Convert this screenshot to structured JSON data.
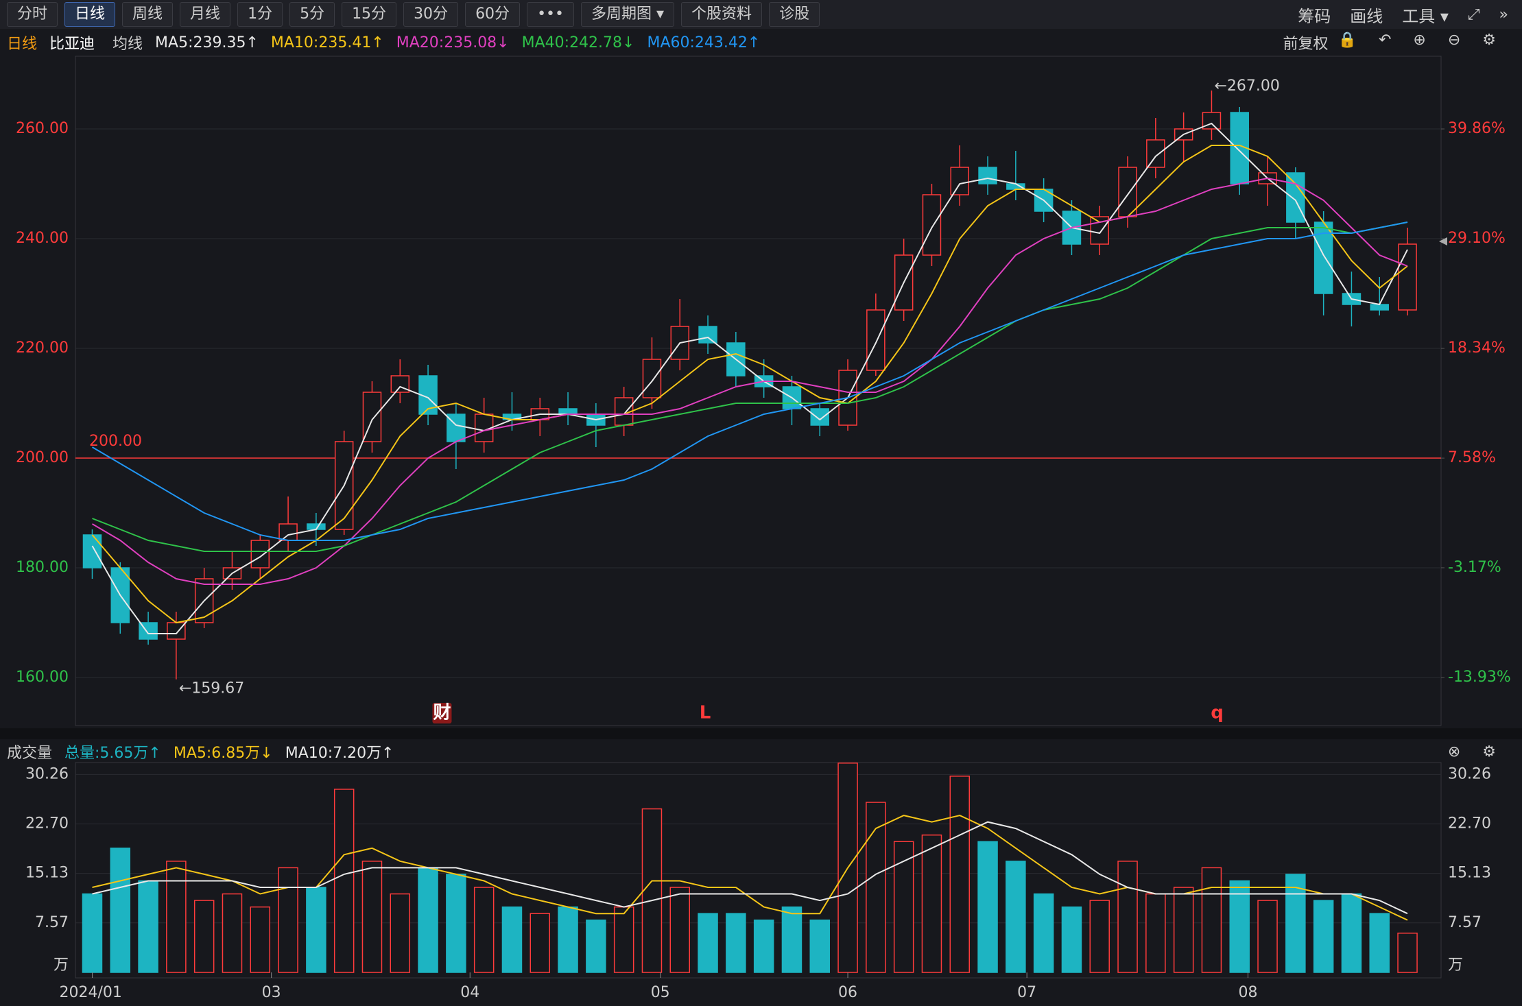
{
  "toolbar": {
    "tabs": [
      "分时",
      "日线",
      "周线",
      "月线",
      "1分",
      "5分",
      "15分",
      "30分",
      "60分",
      "•••",
      "多周期图 ▾",
      "个股资料",
      "诊股"
    ],
    "active": 1,
    "right": [
      "筹码",
      "画线",
      "工具 ▾"
    ]
  },
  "info": {
    "period": "日线",
    "stock": "比亚迪",
    "ma_title": "均线",
    "adjust": "前复权"
  },
  "chart_data": [
    {
      "type": "candlestick",
      "open": [
        186,
        180,
        170,
        167,
        170,
        178,
        180,
        185,
        188,
        187,
        203,
        212,
        215,
        208,
        203,
        208,
        207,
        209,
        208,
        206,
        211,
        218,
        224,
        221,
        215,
        213,
        209,
        206,
        216,
        227,
        237,
        248,
        253,
        250,
        249,
        245,
        239,
        244,
        253,
        258,
        260,
        263,
        250,
        252,
        243,
        230,
        228,
        227
      ],
      "high": [
        187,
        181,
        172,
        172,
        180,
        183,
        186,
        193,
        190,
        205,
        214,
        218,
        217,
        210,
        211,
        212,
        211,
        212,
        210,
        213,
        222,
        229,
        226,
        223,
        218,
        215,
        210,
        218,
        230,
        240,
        250,
        257,
        255,
        256,
        251,
        247,
        246,
        255,
        262,
        263,
        267,
        264,
        255,
        253,
        245,
        234,
        233,
        242
      ],
      "low": [
        178,
        168,
        166,
        159.67,
        169,
        176,
        178,
        183,
        184,
        186,
        201,
        210,
        206,
        198,
        201,
        205,
        204,
        206,
        202,
        204,
        209,
        216,
        219,
        213,
        211,
        206,
        204,
        205,
        215,
        225,
        235,
        246,
        248,
        247,
        243,
        237,
        237,
        242,
        251,
        254,
        258,
        248,
        246,
        240,
        226,
        224,
        226,
        226
      ],
      "close": [
        180,
        170,
        167,
        170,
        178,
        180,
        185,
        188,
        187,
        203,
        212,
        215,
        208,
        203,
        208,
        207,
        209,
        208,
        206,
        211,
        218,
        224,
        221,
        215,
        213,
        209,
        206,
        216,
        227,
        237,
        248,
        253,
        250,
        249,
        245,
        239,
        244,
        253,
        258,
        260,
        263,
        250,
        252,
        243,
        230,
        228,
        227,
        239
      ],
      "up_color": "#ff3b3b",
      "down_color": "#1db4c2",
      "series": [
        {
          "name": "MA5:239.35↑",
          "color": "#e8e8e8",
          "values": [
            184,
            175,
            168,
            168,
            174,
            179,
            182,
            186,
            187,
            195,
            207,
            213,
            211,
            206,
            205,
            207,
            208,
            208,
            207,
            208,
            214,
            221,
            222,
            218,
            214,
            211,
            207,
            211,
            221,
            232,
            242,
            250,
            251,
            250,
            247,
            242,
            241,
            248,
            255,
            259,
            261,
            256,
            251,
            247,
            237,
            229,
            228,
            238
          ]
        },
        {
          "name": "MA10:235.41↑",
          "color": "#f5c518",
          "values": [
            186,
            180,
            174,
            170,
            171,
            174,
            178,
            182,
            185,
            189,
            196,
            204,
            209,
            210,
            208,
            207,
            207,
            208,
            208,
            208,
            210,
            214,
            218,
            219,
            217,
            214,
            211,
            210,
            214,
            221,
            230,
            240,
            246,
            249,
            249,
            246,
            243,
            244,
            249,
            254,
            257,
            257,
            255,
            250,
            243,
            236,
            231,
            235
          ]
        },
        {
          "name": "MA20:235.08↓",
          "color": "#e040c0",
          "values": [
            188,
            185,
            181,
            178,
            177,
            177,
            177,
            178,
            180,
            184,
            189,
            195,
            200,
            203,
            205,
            206,
            207,
            208,
            208,
            208,
            208,
            209,
            211,
            213,
            214,
            214,
            213,
            212,
            212,
            214,
            218,
            224,
            231,
            237,
            240,
            242,
            243,
            244,
            245,
            247,
            249,
            250,
            251,
            250,
            247,
            242,
            237,
            235
          ]
        },
        {
          "name": "MA40:242.78↓",
          "color": "#2fc24a",
          "values": [
            189,
            187,
            185,
            184,
            183,
            183,
            183,
            183,
            183,
            184,
            186,
            188,
            190,
            192,
            195,
            198,
            201,
            203,
            205,
            206,
            207,
            208,
            209,
            210,
            210,
            210,
            210,
            210,
            211,
            213,
            216,
            219,
            222,
            225,
            227,
            228,
            229,
            231,
            234,
            237,
            240,
            241,
            242,
            242,
            242,
            241,
            242,
            243
          ]
        },
        {
          "name": "MA60:243.42↑",
          "color": "#2196f3",
          "values": [
            202,
            199,
            196,
            193,
            190,
            188,
            186,
            185,
            185,
            185,
            186,
            187,
            189,
            190,
            191,
            192,
            193,
            194,
            195,
            196,
            198,
            201,
            204,
            206,
            208,
            209,
            210,
            211,
            213,
            215,
            218,
            221,
            223,
            225,
            227,
            229,
            231,
            233,
            235,
            237,
            238,
            239,
            240,
            240,
            241,
            241,
            242,
            243
          ]
        }
      ],
      "xlim": [
        -0.6,
        48.2
      ],
      "ylim": [
        151.25,
        273.25
      ],
      "yticks": [
        {
          "value": 160,
          "label": "160.00"
        },
        {
          "value": 180,
          "label": "180.00"
        },
        {
          "value": 200,
          "label": "200.00"
        },
        {
          "value": 220,
          "label": "220.00"
        },
        {
          "value": 240,
          "label": "240.00"
        },
        {
          "value": 260,
          "label": "260.00"
        }
      ],
      "y2lim": [
        -18.64,
        46.99
      ],
      "y2ticks": [
        {
          "value": -13.93,
          "label": "-13.93%"
        },
        {
          "value": -3.17,
          "label": "-3.17%"
        },
        {
          "value": 7.58,
          "label": "7.58%"
        },
        {
          "value": 18.34,
          "label": "18.34%"
        },
        {
          "value": 29.1,
          "label": "29.10%"
        },
        {
          "value": 39.86,
          "label": "39.86%"
        }
      ],
      "grid": true,
      "hline": {
        "value": 200,
        "label": "200.00"
      },
      "annotations": [
        {
          "label": "←267.00",
          "value": 267,
          "x": 40
        },
        {
          "label": "←159.67",
          "value": 159.67,
          "x": 3
        }
      ],
      "events": [
        {
          "label": "财",
          "x": 12.5
        },
        {
          "label": "L",
          "x": 21.9
        },
        {
          "label": "q",
          "x": 40.2
        }
      ]
    },
    {
      "type": "bar",
      "title": "成交量",
      "total_label": "总量:5.65万↑",
      "values": [
        12,
        19,
        14,
        17,
        11,
        12,
        10,
        16,
        13,
        28,
        17,
        12,
        16,
        15,
        13,
        10,
        9,
        10,
        8,
        10,
        25,
        13,
        9,
        9,
        8,
        10,
        8,
        32,
        26,
        20,
        21,
        30,
        20,
        17,
        12,
        10,
        11,
        17,
        12,
        13,
        16,
        14,
        11,
        15,
        11,
        12,
        9,
        6
      ],
      "series": [
        {
          "name": "MA5:6.85万↓",
          "color": "#f5c518",
          "values": [
            13,
            14,
            15,
            16,
            15,
            14,
            12,
            13,
            13,
            18,
            19,
            17,
            16,
            15,
            14,
            12,
            11,
            10,
            9,
            9,
            14,
            14,
            13,
            13,
            10,
            9,
            9,
            16,
            22,
            24,
            23,
            24,
            22,
            19,
            16,
            13,
            12,
            13,
            12,
            12,
            13,
            13,
            13,
            13,
            12,
            12,
            10,
            8
          ]
        },
        {
          "name": "MA10:7.20万↑",
          "color": "#e8e8e8",
          "values": [
            12,
            13,
            14,
            14,
            14,
            14,
            13,
            13,
            13,
            15,
            16,
            16,
            16,
            16,
            15,
            14,
            13,
            12,
            11,
            10,
            11,
            12,
            12,
            12,
            12,
            12,
            11,
            12,
            15,
            17,
            19,
            21,
            23,
            22,
            20,
            18,
            15,
            13,
            12,
            12,
            12,
            12,
            12,
            12,
            12,
            12,
            11,
            9
          ]
        }
      ],
      "xlim": [
        -0.6,
        48.2
      ],
      "ylim": [
        0,
        32.08
      ],
      "yticks": [
        7.57,
        15.13,
        {
          "value": 22.7,
          "label": "22.70"
        },
        30.26
      ],
      "unit": "万",
      "xticks": [
        {
          "value": 0,
          "label": "2024/01"
        },
        {
          "value": 6.4,
          "label": "03"
        },
        {
          "value": 13.5,
          "label": "04"
        },
        {
          "value": 20.3,
          "label": "05"
        },
        {
          "value": 27.0,
          "label": "06"
        },
        {
          "value": 33.4,
          "label": "07"
        },
        {
          "value": 41.3,
          "label": "08"
        }
      ]
    }
  ]
}
